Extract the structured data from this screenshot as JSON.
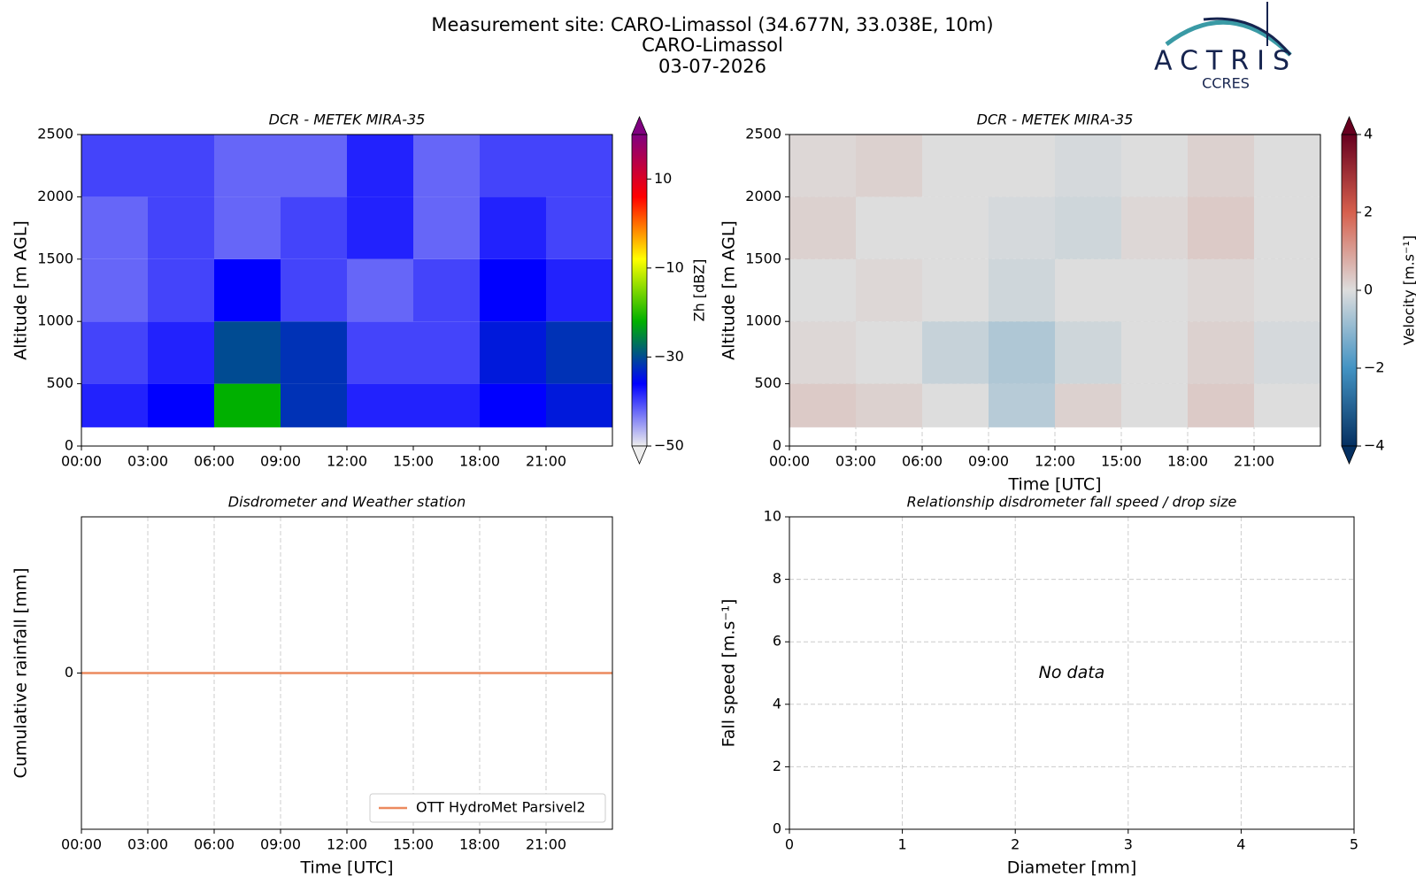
{
  "header": {
    "title": [
      "Measurement site: CARO-Limassol (34.677N, 33.038E, 10m)",
      "CARO-Limassol",
      "03-07-2026"
    ],
    "logo": {
      "name": "ACTRIS",
      "sub": "CCRES"
    }
  },
  "chart_data": [
    {
      "type": "heatmap",
      "title": "DCR - METEK MIRA-35",
      "ylabel": "Altitude [m AGL]",
      "xlim": [
        0,
        24
      ],
      "xticks": [
        {
          "value": 0,
          "label": "00:00"
        },
        {
          "value": 3,
          "label": "03:00"
        },
        {
          "value": 6,
          "label": "06:00"
        },
        {
          "value": 9,
          "label": "09:00"
        },
        {
          "value": 12,
          "label": "12:00"
        },
        {
          "value": 15,
          "label": "15:00"
        },
        {
          "value": 18,
          "label": "18:00"
        },
        {
          "value": 21,
          "label": "21:00"
        }
      ],
      "ylim": [
        0,
        2500
      ],
      "yticks": [
        0,
        500,
        1000,
        1500,
        2000,
        2500
      ],
      "grid": false,
      "x_edges": [
        0,
        3,
        6,
        9,
        12,
        15,
        18,
        21,
        24
      ],
      "y_edges": [
        150,
        500,
        1000,
        1500,
        2000,
        2500
      ],
      "z": [
        [
          -38,
          -36,
          -22,
          -32,
          -38,
          -38,
          -36,
          -34
        ],
        [
          -40,
          -38,
          -30,
          -32,
          -40,
          -40,
          -34,
          -32
        ],
        [
          -42,
          -40,
          -36,
          -40,
          -42,
          -40,
          -36,
          -38
        ],
        [
          -42,
          -40,
          -42,
          -40,
          -38,
          -42,
          -38,
          -40
        ],
        [
          -40,
          -40,
          -42,
          -42,
          -38,
          -42,
          -40,
          -40
        ]
      ],
      "colorbar": {
        "label": "Zh [dBZ]",
        "lim": [
          -50,
          20
        ],
        "ticks": [
          {
            "value": -50,
            "label": "−50"
          },
          {
            "value": -30,
            "label": "−30"
          },
          {
            "value": -10,
            "label": "−10"
          },
          10
        ],
        "colors": [
          "#eeeeee",
          "#0000ff",
          "#00b000",
          "#ffff00",
          "#ff0000",
          "#800080"
        ]
      }
    },
    {
      "type": "heatmap",
      "title": "DCR - METEK MIRA-35",
      "xlabel": "Time [UTC]",
      "ylabel": "Altitude [m AGL]",
      "xlim": [
        0,
        24
      ],
      "xticks": [
        {
          "value": 0,
          "label": "00:00"
        },
        {
          "value": 3,
          "label": "03:00"
        },
        {
          "value": 6,
          "label": "06:00"
        },
        {
          "value": 9,
          "label": "09:00"
        },
        {
          "value": 12,
          "label": "12:00"
        },
        {
          "value": 15,
          "label": "15:00"
        },
        {
          "value": 18,
          "label": "18:00"
        },
        {
          "value": 21,
          "label": "21:00"
        }
      ],
      "ylim": [
        0,
        2500
      ],
      "yticks": [
        0,
        500,
        1000,
        1500,
        2000,
        2500
      ],
      "grid": true,
      "x_edges": [
        0,
        3,
        6,
        9,
        12,
        15,
        18,
        21,
        24
      ],
      "y_edges": [
        150,
        500,
        1000,
        1500,
        2000,
        2500
      ],
      "z": [
        [
          0.3,
          0.2,
          0,
          -0.5,
          0.2,
          0,
          0.3,
          0
        ],
        [
          0.1,
          0,
          -0.3,
          -0.6,
          -0.2,
          0,
          0.2,
          -0.1
        ],
        [
          0,
          0.1,
          0,
          -0.2,
          0,
          0,
          0.1,
          0
        ],
        [
          0.2,
          0,
          0,
          -0.1,
          -0.2,
          0.1,
          0.3,
          0
        ],
        [
          0.1,
          0.2,
          0,
          0,
          -0.1,
          0,
          0.2,
          0
        ]
      ],
      "colorbar": {
        "label": "Velocity [m.s⁻¹]",
        "lim": [
          -4,
          4
        ],
        "ticks": [
          {
            "value": -4,
            "label": "−4"
          },
          {
            "value": -2,
            "label": "−2"
          },
          0,
          2,
          4
        ],
        "colors": [
          "#053061",
          "#4393c3",
          "#dddddd",
          "#d6604d",
          "#67001f"
        ]
      }
    },
    {
      "type": "line",
      "title": "Disdrometer and Weather station",
      "xlabel": "Time [UTC]",
      "ylabel": "Cumulative rainfall [mm]",
      "xlim": [
        0,
        24
      ],
      "xticks": [
        {
          "value": 0,
          "label": "00:00"
        },
        {
          "value": 3,
          "label": "03:00"
        },
        {
          "value": 6,
          "label": "06:00"
        },
        {
          "value": 9,
          "label": "09:00"
        },
        {
          "value": 12,
          "label": "12:00"
        },
        {
          "value": 15,
          "label": "15:00"
        },
        {
          "value": 18,
          "label": "18:00"
        },
        {
          "value": 21,
          "label": "21:00"
        }
      ],
      "ylim": [
        -1,
        1
      ],
      "yticks": [
        0
      ],
      "grid": true,
      "legend": "lower right",
      "x": [
        0,
        24
      ],
      "series": [
        {
          "name": "OTT HydroMet Parsivel2",
          "color": "#ec8a5e",
          "values": [
            0,
            0
          ]
        }
      ]
    },
    {
      "type": "scatter",
      "title": "Relationship disdrometer fall speed / drop size",
      "xlabel": "Diameter [mm]",
      "ylabel": "Fall speed [m.s⁻¹]",
      "xlim": [
        0,
        5
      ],
      "xticks": [
        0,
        1,
        2,
        3,
        4,
        5
      ],
      "ylim": [
        0,
        10
      ],
      "yticks": [
        0,
        2,
        4,
        6,
        8,
        10
      ],
      "grid": true,
      "annotation": "No data"
    }
  ]
}
